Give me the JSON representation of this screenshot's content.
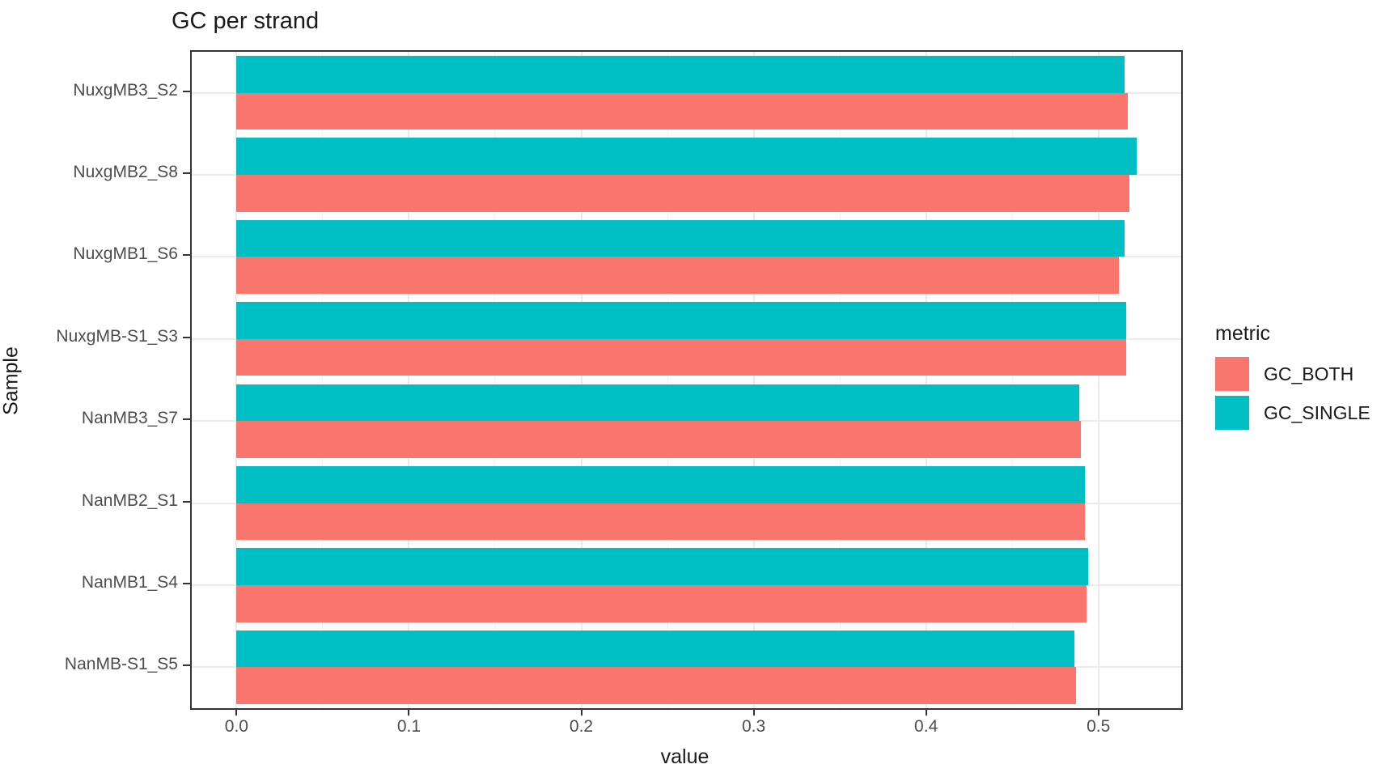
{
  "chart_data": {
    "type": "bar",
    "orientation": "horizontal",
    "title": "GC per strand",
    "xlabel": "value",
    "ylabel": "Sample",
    "legend_title": "metric",
    "legend_position": "right",
    "grid": true,
    "categories": [
      "NuxgMB3_S2",
      "NuxgMB2_S8",
      "NuxgMB1_S6",
      "NuxgMB-S1_S3",
      "NanMB3_S7",
      "NanMB2_S1",
      "NanMB1_S4",
      "NanMB-S1_S5"
    ],
    "series": [
      {
        "name": "GC_BOTH",
        "color": "#F8766D",
        "values": [
          0.517,
          0.518,
          0.512,
          0.516,
          0.49,
          0.492,
          0.493,
          0.487
        ]
      },
      {
        "name": "GC_SINGLE",
        "color": "#00BFC4",
        "values": [
          0.515,
          0.522,
          0.515,
          0.516,
          0.489,
          0.492,
          0.494,
          0.486
        ]
      }
    ],
    "x_ticks": [
      0.0,
      0.1,
      0.2,
      0.3,
      0.4,
      0.5
    ],
    "x_minor_ticks": [
      0.05,
      0.15,
      0.25,
      0.35,
      0.45
    ],
    "xlim": [
      -0.026,
      0.548
    ],
    "colors": {
      "panel_border": "#333333",
      "grid_major": "#ebebeb",
      "grid_minor": "#f2f2f2",
      "tick_text": "#4d4d4d",
      "title_text": "#1a1a1a"
    }
  }
}
